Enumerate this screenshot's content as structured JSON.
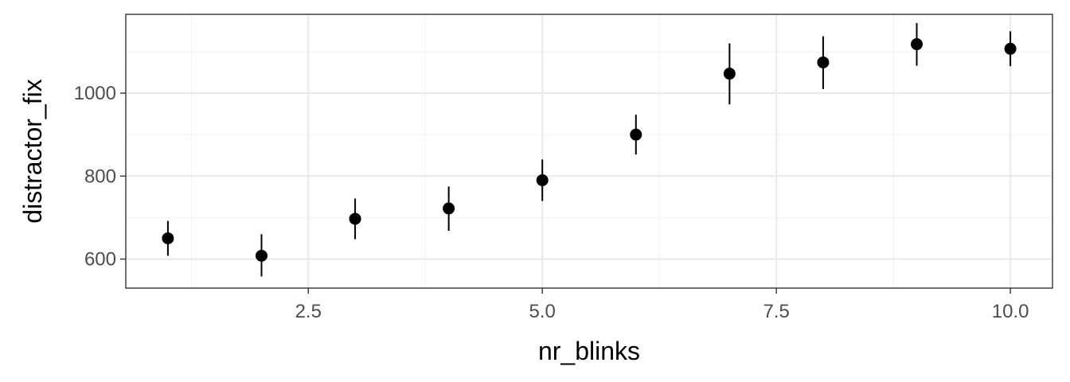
{
  "chart_data": {
    "type": "scatter",
    "title": "",
    "xlabel": "nr_blinks",
    "ylabel": "distractor_fix",
    "xlim": [
      0.55,
      10.45
    ],
    "ylim": [
      530,
      1190
    ],
    "x_ticks": [
      2.5,
      5.0,
      7.5,
      10.0
    ],
    "x_tick_labels": [
      "2.5",
      "5.0",
      "7.5",
      "10.0"
    ],
    "y_ticks": [
      600,
      800,
      1000
    ],
    "y_tick_labels": [
      "600",
      "800",
      "1000"
    ],
    "grid": true,
    "theme": "bw",
    "points": [
      {
        "x": 1,
        "y": 650,
        "ymin": 608,
        "ymax": 692
      },
      {
        "x": 2,
        "y": 608,
        "ymin": 558,
        "ymax": 660
      },
      {
        "x": 3,
        "y": 697,
        "ymin": 648,
        "ymax": 746
      },
      {
        "x": 4,
        "y": 722,
        "ymin": 668,
        "ymax": 775
      },
      {
        "x": 5,
        "y": 790,
        "ymin": 740,
        "ymax": 840
      },
      {
        "x": 6,
        "y": 900,
        "ymin": 852,
        "ymax": 948
      },
      {
        "x": 7,
        "y": 1047,
        "ymin": 973,
        "ymax": 1120
      },
      {
        "x": 8,
        "y": 1074,
        "ymin": 1010,
        "ymax": 1137
      },
      {
        "x": 9,
        "y": 1118,
        "ymin": 1066,
        "ymax": 1169
      },
      {
        "x": 10,
        "y": 1107,
        "ymin": 1065,
        "ymax": 1149
      }
    ],
    "colors": {
      "point": "#000000",
      "grid": "#ebebeb",
      "border": "#333333",
      "tick_text": "#4d4d4d"
    }
  }
}
